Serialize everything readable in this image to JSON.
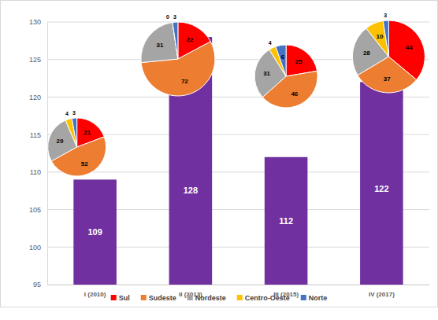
{
  "chart_data": [
    {
      "type": "bar",
      "categories": [
        "I (2010)",
        "II (2013)",
        "III (2015)",
        "IV (2017)"
      ],
      "values": [
        109,
        128,
        112,
        122
      ],
      "color": "#7030a0",
      "ylim": [
        95,
        130
      ],
      "yticks": [
        95,
        100,
        105,
        110,
        115,
        120,
        125,
        130
      ],
      "grid": true,
      "data_labels": true
    },
    {
      "type": "pie",
      "categories": [
        "Sul",
        "Sudeste",
        "Nordeste",
        "Centro-Oeste",
        "Norte"
      ],
      "values": [
        21,
        52,
        29,
        4,
        3
      ],
      "colors": [
        "#ff0000",
        "#ed7d31",
        "#a5a5a5",
        "#ffc000",
        "#4472c4"
      ],
      "data_labels": true,
      "legend": "bottom"
    },
    {
      "type": "pie",
      "categories": [
        "Sul",
        "Sudeste",
        "Nordeste",
        "Centro-Oeste",
        "Norte"
      ],
      "values": [
        22,
        72,
        31,
        0,
        3
      ],
      "colors": [
        "#ff0000",
        "#ed7d31",
        "#a5a5a5",
        "#ffc000",
        "#4472c4"
      ],
      "data_labels": true
    },
    {
      "type": "pie",
      "categories": [
        "Sul",
        "Sudeste",
        "Nordeste",
        "Centro-Oeste",
        "Norte"
      ],
      "values": [
        25,
        46,
        31,
        4,
        6
      ],
      "colors": [
        "#ff0000",
        "#ed7d31",
        "#a5a5a5",
        "#ffc000",
        "#4472c4"
      ],
      "data_labels": true
    },
    {
      "type": "pie",
      "categories": [
        "Sul",
        "Sudeste",
        "Nordeste",
        "Centro-Oeste",
        "Norte"
      ],
      "values": [
        44,
        37,
        28,
        10,
        3
      ],
      "colors": [
        "#ff0000",
        "#ed7d31",
        "#a5a5a5",
        "#ffc000",
        "#4472c4"
      ],
      "data_labels": true
    }
  ]
}
